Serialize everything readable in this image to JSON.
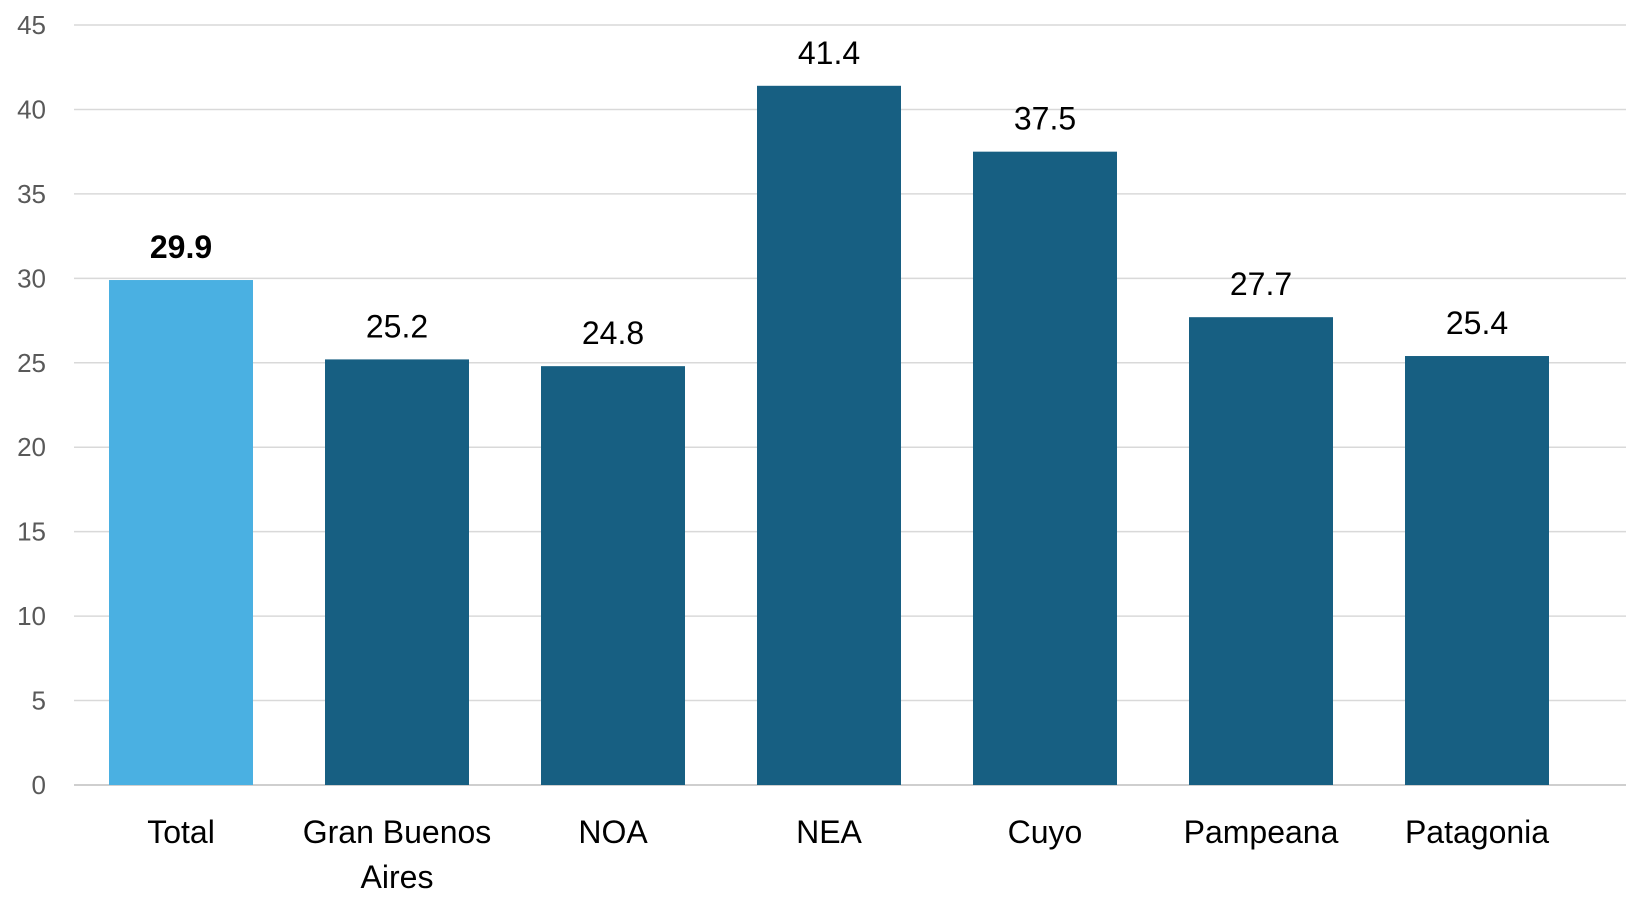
{
  "chart_data": {
    "type": "bar",
    "categories": [
      "Total",
      "Gran Buenos Aires",
      "NOA",
      "NEA",
      "Cuyo",
      "Pampeana",
      "Patagonia"
    ],
    "category_lines": [
      [
        "Total"
      ],
      [
        "Gran Buenos",
        "Aires"
      ],
      [
        "NOA"
      ],
      [
        "NEA"
      ],
      [
        "Cuyo"
      ],
      [
        "Pampeana"
      ],
      [
        "Patagonia"
      ]
    ],
    "values": [
      29.9,
      25.2,
      24.8,
      41.4,
      37.5,
      27.7,
      25.4
    ],
    "data_labels": [
      "29.9",
      "25.2",
      "24.8",
      "41.4",
      "37.5",
      "27.7",
      "25.4"
    ],
    "highlight_index": 0,
    "bar_colors": [
      "#4AB0E2",
      "#175F82",
      "#175F82",
      "#175F82",
      "#175F82",
      "#175F82",
      "#175F82"
    ],
    "ylim": [
      0,
      45
    ],
    "yticks": [
      0,
      5,
      10,
      15,
      20,
      25,
      30,
      35,
      40,
      45
    ],
    "grid": true,
    "title": "",
    "xlabel": "",
    "ylabel": ""
  }
}
